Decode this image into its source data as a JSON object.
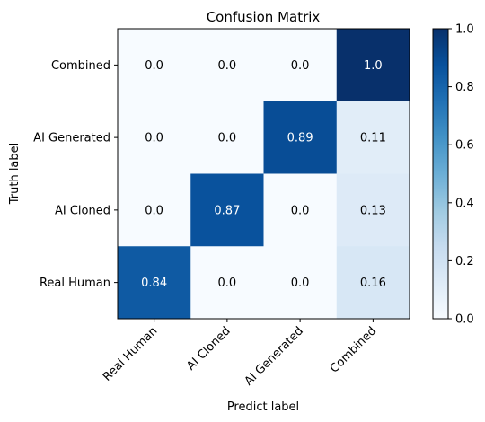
{
  "chart_data": {
    "type": "heatmap",
    "title": "Confusion Matrix",
    "xlabel": "Predict label",
    "ylabel": "Truth label",
    "x_categories": [
      "Real Human",
      "AI Cloned",
      "AI Generated",
      "Combined"
    ],
    "y_categories_top_to_bottom": [
      "Combined",
      "AI Generated",
      "AI Cloned",
      "Real Human"
    ],
    "cells": [
      [
        0.0,
        0.0,
        0.0,
        1.0
      ],
      [
        0.0,
        0.0,
        0.89,
        0.11
      ],
      [
        0.0,
        0.87,
        0.0,
        0.13
      ],
      [
        0.84,
        0.0,
        0.0,
        0.16
      ]
    ],
    "cell_labels": [
      [
        "0.0",
        "0.0",
        "0.0",
        "1.0"
      ],
      [
        "0.0",
        "0.0",
        "0.89",
        "0.11"
      ],
      [
        "0.0",
        "0.87",
        "0.0",
        "0.13"
      ],
      [
        "0.84",
        "0.0",
        "0.0",
        "0.16"
      ]
    ],
    "colorbar": {
      "range": [
        0.0,
        1.0
      ],
      "ticks": [
        0.0,
        0.2,
        0.4,
        0.6,
        0.8,
        1.0
      ],
      "tick_labels": [
        "0.0",
        "0.2",
        "0.4",
        "0.6",
        "0.8",
        "1.0"
      ]
    },
    "colormap": "Blues",
    "colors": {
      "cmap_stops": [
        "#f7fbff",
        "#deebf7",
        "#c6dbef",
        "#9ecae1",
        "#6baed6",
        "#4292c6",
        "#2171b5",
        "#08519c",
        "#08306b"
      ],
      "text_light": "#ffffff",
      "text_dark": "#000000",
      "axis": "#000000"
    }
  }
}
